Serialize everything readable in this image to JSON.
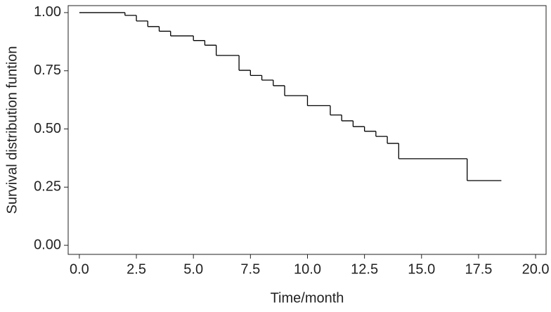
{
  "chart_data": {
    "type": "step",
    "step": "post",
    "xlabel": "Time/month",
    "ylabel": "Survival distribution funtion",
    "x": [
      0,
      2,
      2.5,
      3,
      3.5,
      4,
      5,
      5.5,
      6,
      7,
      7.5,
      8,
      8.5,
      9,
      10,
      11,
      11.5,
      12,
      12.5,
      13,
      13.5,
      14,
      17,
      18.5
    ],
    "values": [
      1.0,
      0.988,
      0.964,
      0.94,
      0.92,
      0.9,
      0.88,
      0.86,
      0.816,
      0.752,
      0.73,
      0.71,
      0.686,
      0.643,
      0.6,
      0.56,
      0.535,
      0.51,
      0.49,
      0.468,
      0.438,
      0.372,
      0.278,
      0.278
    ],
    "color": "#000000",
    "xlim": [
      -0.49,
      20.46
    ],
    "ylim": [
      -0.039,
      1.03
    ],
    "xticks": [
      {
        "value": 0,
        "label": "0.0"
      },
      {
        "value": 2.5,
        "label": "2.5"
      },
      {
        "value": 5,
        "label": "5.0"
      },
      {
        "value": 7.5,
        "label": "7.5"
      },
      {
        "value": 10,
        "label": "10.0"
      },
      {
        "value": 12.5,
        "label": "12.5"
      },
      {
        "value": 15,
        "label": "15.0"
      },
      {
        "value": 17.5,
        "label": "17.5"
      },
      {
        "value": 20,
        "label": "20.0"
      }
    ],
    "yticks": [
      {
        "value": 0,
        "label": "0.00"
      },
      {
        "value": 0.25,
        "label": "0.25"
      },
      {
        "value": 0.5,
        "label": "0.50"
      },
      {
        "value": 0.75,
        "label": "0.75"
      },
      {
        "value": 1,
        "label": "1.00"
      }
    ]
  }
}
